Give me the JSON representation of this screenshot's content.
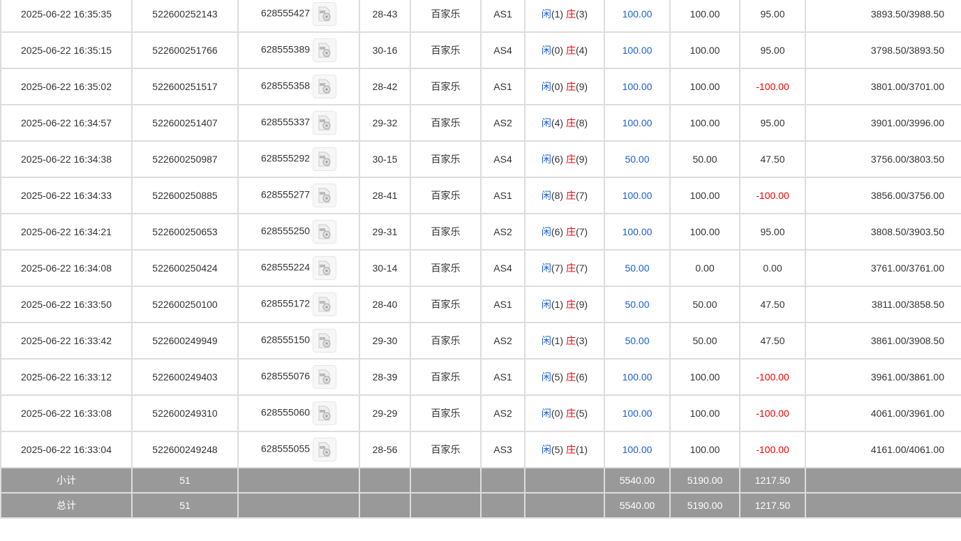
{
  "labels": {
    "player": "闲",
    "banker": "庄"
  },
  "colors": {
    "blue": "#1a5fd6",
    "red": "#e00000",
    "summary_bg": "#999999"
  },
  "rows": [
    {
      "time": "2025-06-22 16:35:35",
      "order": "522600252143",
      "game_id": "628555427",
      "round": "28-43",
      "game": "百家乐",
      "table": "AS1",
      "p": "(1)",
      "b": "(3)",
      "bet": "100.00",
      "valid": "100.00",
      "win": "95.00",
      "balance": "3893.50/3988.50"
    },
    {
      "time": "2025-06-22 16:35:15",
      "order": "522600251766",
      "game_id": "628555389",
      "round": "30-16",
      "game": "百家乐",
      "table": "AS4",
      "p": "(0)",
      "b": "(4)",
      "bet": "100.00",
      "valid": "100.00",
      "win": "95.00",
      "balance": "3798.50/3893.50"
    },
    {
      "time": "2025-06-22 16:35:02",
      "order": "522600251517",
      "game_id": "628555358",
      "round": "28-42",
      "game": "百家乐",
      "table": "AS1",
      "p": "(0)",
      "b": "(9)",
      "bet": "100.00",
      "valid": "100.00",
      "win": "-100.00",
      "balance": "3801.00/3701.00"
    },
    {
      "time": "2025-06-22 16:34:57",
      "order": "522600251407",
      "game_id": "628555337",
      "round": "29-32",
      "game": "百家乐",
      "table": "AS2",
      "p": "(4)",
      "b": "(8)",
      "bet": "100.00",
      "valid": "100.00",
      "win": "95.00",
      "balance": "3901.00/3996.00"
    },
    {
      "time": "2025-06-22 16:34:38",
      "order": "522600250987",
      "game_id": "628555292",
      "round": "30-15",
      "game": "百家乐",
      "table": "AS4",
      "p": "(6)",
      "b": "(9)",
      "bet": "50.00",
      "valid": "50.00",
      "win": "47.50",
      "balance": "3756.00/3803.50"
    },
    {
      "time": "2025-06-22 16:34:33",
      "order": "522600250885",
      "game_id": "628555277",
      "round": "28-41",
      "game": "百家乐",
      "table": "AS1",
      "p": "(8)",
      "b": "(7)",
      "bet": "100.00",
      "valid": "100.00",
      "win": "-100.00",
      "balance": "3856.00/3756.00"
    },
    {
      "time": "2025-06-22 16:34:21",
      "order": "522600250653",
      "game_id": "628555250",
      "round": "29-31",
      "game": "百家乐",
      "table": "AS2",
      "p": "(6)",
      "b": "(7)",
      "bet": "100.00",
      "valid": "100.00",
      "win": "95.00",
      "balance": "3808.50/3903.50"
    },
    {
      "time": "2025-06-22 16:34:08",
      "order": "522600250424",
      "game_id": "628555224",
      "round": "30-14",
      "game": "百家乐",
      "table": "AS4",
      "p": "(7)",
      "b": "(7)",
      "bet": "50.00",
      "valid": "0.00",
      "win": "0.00",
      "balance": "3761.00/3761.00"
    },
    {
      "time": "2025-06-22 16:33:50",
      "order": "522600250100",
      "game_id": "628555172",
      "round": "28-40",
      "game": "百家乐",
      "table": "AS1",
      "p": "(1)",
      "b": "(9)",
      "bet": "50.00",
      "valid": "50.00",
      "win": "47.50",
      "balance": "3811.00/3858.50"
    },
    {
      "time": "2025-06-22 16:33:42",
      "order": "522600249949",
      "game_id": "628555150",
      "round": "29-30",
      "game": "百家乐",
      "table": "AS2",
      "p": "(1)",
      "b": "(3)",
      "bet": "50.00",
      "valid": "50.00",
      "win": "47.50",
      "balance": "3861.00/3908.50"
    },
    {
      "time": "2025-06-22 16:33:12",
      "order": "522600249403",
      "game_id": "628555076",
      "round": "28-39",
      "game": "百家乐",
      "table": "AS1",
      "p": "(5)",
      "b": "(6)",
      "bet": "100.00",
      "valid": "100.00",
      "win": "-100.00",
      "balance": "3961.00/3861.00"
    },
    {
      "time": "2025-06-22 16:33:08",
      "order": "522600249310",
      "game_id": "628555060",
      "round": "29-29",
      "game": "百家乐",
      "table": "AS2",
      "p": "(0)",
      "b": "(5)",
      "bet": "100.00",
      "valid": "100.00",
      "win": "-100.00",
      "balance": "4061.00/3961.00"
    },
    {
      "time": "2025-06-22 16:33:04",
      "order": "522600249248",
      "game_id": "628555055",
      "round": "28-56",
      "game": "百家乐",
      "table": "AS3",
      "p": "(5)",
      "b": "(1)",
      "bet": "100.00",
      "valid": "100.00",
      "win": "-100.00",
      "balance": "4161.00/4061.00"
    }
  ],
  "summary": [
    {
      "label": "小计",
      "count": "51",
      "bet": "5540.00",
      "valid": "5190.00",
      "win": "1217.50"
    },
    {
      "label": "总计",
      "count": "51",
      "bet": "5540.00",
      "valid": "5190.00",
      "win": "1217.50"
    }
  ]
}
